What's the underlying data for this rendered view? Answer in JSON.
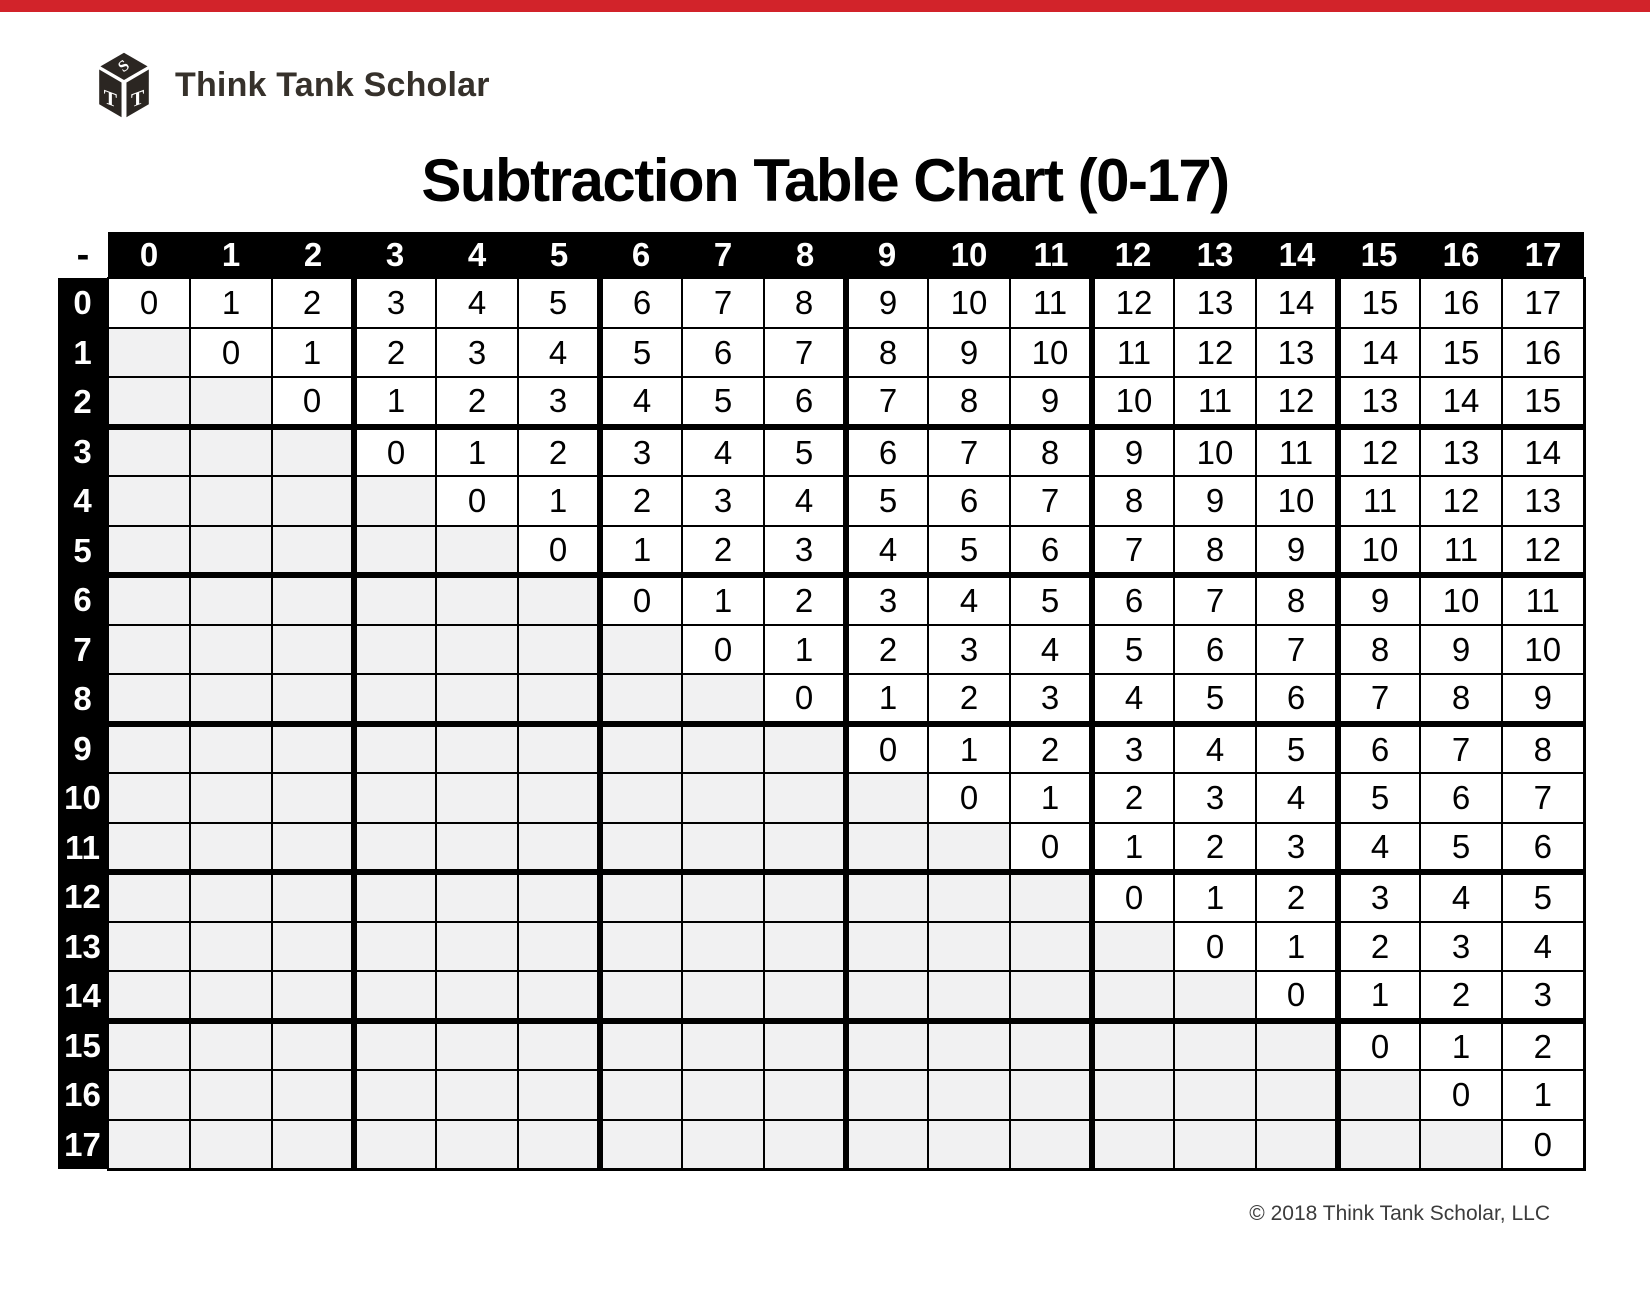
{
  "page": {
    "background_color": "#ffffff",
    "top_bar_color": "#d2232a"
  },
  "logo": {
    "text": "Think Tank Scholar",
    "cube_top_letter": "S",
    "cube_left_letter": "T",
    "cube_right_letter": "T",
    "cube_color": "#2b2622",
    "text_color": "#36312b"
  },
  "title": "Subtraction Table Chart (0-17)",
  "footer": {
    "copyright": "© 2018 Think Tank Scholar, LLC"
  },
  "table_colors": {
    "header_bg": "#000000",
    "header_text": "#ffffff",
    "cell_bg": "#ffffff",
    "empty_cell_bg": "#f1f1f2",
    "grid_line": "#000000"
  },
  "chart_data": {
    "type": "table",
    "title": "Subtraction Table Chart (0-17)",
    "corner_symbol": "-",
    "column_headers": [
      0,
      1,
      2,
      3,
      4,
      5,
      6,
      7,
      8,
      9,
      10,
      11,
      12,
      13,
      14,
      15,
      16,
      17
    ],
    "row_headers": [
      0,
      1,
      2,
      3,
      4,
      5,
      6,
      7,
      8,
      9,
      10,
      11,
      12,
      13,
      14,
      15,
      16,
      17
    ],
    "cells": [
      [
        0,
        1,
        2,
        3,
        4,
        5,
        6,
        7,
        8,
        9,
        10,
        11,
        12,
        13,
        14,
        15,
        16,
        17
      ],
      [
        null,
        0,
        1,
        2,
        3,
        4,
        5,
        6,
        7,
        8,
        9,
        10,
        11,
        12,
        13,
        14,
        15,
        16
      ],
      [
        null,
        null,
        0,
        1,
        2,
        3,
        4,
        5,
        6,
        7,
        8,
        9,
        10,
        11,
        12,
        13,
        14,
        15
      ],
      [
        null,
        null,
        null,
        0,
        1,
        2,
        3,
        4,
        5,
        6,
        7,
        8,
        9,
        10,
        11,
        12,
        13,
        14
      ],
      [
        null,
        null,
        null,
        null,
        0,
        1,
        2,
        3,
        4,
        5,
        6,
        7,
        8,
        9,
        10,
        11,
        12,
        13
      ],
      [
        null,
        null,
        null,
        null,
        null,
        0,
        1,
        2,
        3,
        4,
        5,
        6,
        7,
        8,
        9,
        10,
        11,
        12
      ],
      [
        null,
        null,
        null,
        null,
        null,
        null,
        0,
        1,
        2,
        3,
        4,
        5,
        6,
        7,
        8,
        9,
        10,
        11
      ],
      [
        null,
        null,
        null,
        null,
        null,
        null,
        null,
        0,
        1,
        2,
        3,
        4,
        5,
        6,
        7,
        8,
        9,
        10
      ],
      [
        null,
        null,
        null,
        null,
        null,
        null,
        null,
        null,
        0,
        1,
        2,
        3,
        4,
        5,
        6,
        7,
        8,
        9
      ],
      [
        null,
        null,
        null,
        null,
        null,
        null,
        null,
        null,
        null,
        0,
        1,
        2,
        3,
        4,
        5,
        6,
        7,
        8
      ],
      [
        null,
        null,
        null,
        null,
        null,
        null,
        null,
        null,
        null,
        null,
        0,
        1,
        2,
        3,
        4,
        5,
        6,
        7
      ],
      [
        null,
        null,
        null,
        null,
        null,
        null,
        null,
        null,
        null,
        null,
        null,
        0,
        1,
        2,
        3,
        4,
        5,
        6
      ],
      [
        null,
        null,
        null,
        null,
        null,
        null,
        null,
        null,
        null,
        null,
        null,
        null,
        0,
        1,
        2,
        3,
        4,
        5
      ],
      [
        null,
        null,
        null,
        null,
        null,
        null,
        null,
        null,
        null,
        null,
        null,
        null,
        null,
        0,
        1,
        2,
        3,
        4
      ],
      [
        null,
        null,
        null,
        null,
        null,
        null,
        null,
        null,
        null,
        null,
        null,
        null,
        null,
        null,
        0,
        1,
        2,
        3
      ],
      [
        null,
        null,
        null,
        null,
        null,
        null,
        null,
        null,
        null,
        null,
        null,
        null,
        null,
        null,
        null,
        0,
        1,
        2
      ],
      [
        null,
        null,
        null,
        null,
        null,
        null,
        null,
        null,
        null,
        null,
        null,
        null,
        null,
        null,
        null,
        null,
        0,
        1
      ],
      [
        null,
        null,
        null,
        null,
        null,
        null,
        null,
        null,
        null,
        null,
        null,
        null,
        null,
        null,
        null,
        null,
        null,
        0
      ]
    ]
  }
}
